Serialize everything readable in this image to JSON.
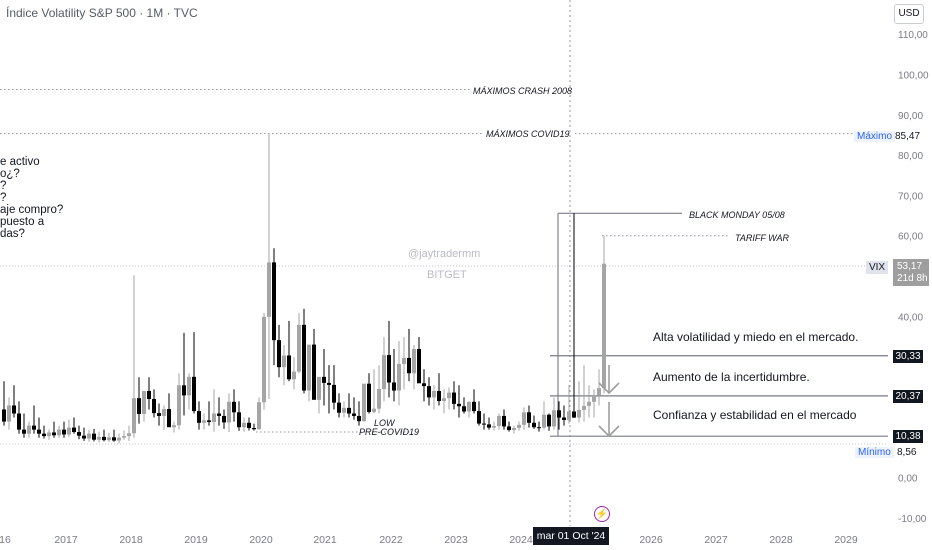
{
  "title": "Índice Volatility S&P 500 · 1M · TVC",
  "currency": "USD",
  "notes_fragments": [
    "e activo",
    "o¿?",
    "?",
    "?",
    "aje compro?",
    "puesto a",
    "das?"
  ],
  "annotations": {
    "crash_2008": "MÁXIMOS CRASH 2008",
    "covid19": "MÁXIMOS COVID19",
    "black_monday": "BLACK MONDAY 05/08",
    "tariff_war": "TARIFF WAR",
    "low": "LOW",
    "pre_covid": "PRE-COVID19"
  },
  "zones": {
    "high": "Alta volatilidad y miedo en el mercado.",
    "mid": "Aumento de la incertidumbre.",
    "low": "Confianza y estabilidad en el mercado"
  },
  "watermarks": {
    "author": "@jaytradermm",
    "broker": "BITGET"
  },
  "price_scale": {
    "maximo_label": "Máximo",
    "maximo_value": "85,47",
    "vix_label": "VIX",
    "vix_value": "53,17",
    "vix_countdown": "21d 8h",
    "minimo_label": "Mínimo",
    "minimo_value": "8,56",
    "level_1": "30,33",
    "level_2": "20,37",
    "level_3": "10,38"
  },
  "cursor_date": "mar 01 Oct '24",
  "colors": {
    "bull": "#a5a5a5",
    "bear": "#000000",
    "guide": "#9598a1",
    "zone_line": "#787b86"
  },
  "chart_data": {
    "type": "candlestick",
    "title": "Índice Volatility S&P 500 · 1M · TVC",
    "y_ticks": [
      "-10,00",
      "0,00",
      "10,00",
      "20,00",
      "30,00",
      "40,00",
      "50,00",
      "60,00",
      "70,00",
      "80,00",
      "90,00",
      "100,00",
      "110,00"
    ],
    "ylim": [
      -10,
      115
    ],
    "x_ticks": [
      "16",
      "2017",
      "2018",
      "2019",
      "2020",
      "2021",
      "2022",
      "2023",
      "2024",
      "2026",
      "2027",
      "2028",
      "2029"
    ],
    "horizontal_levels": [
      96.4,
      85.47,
      60.5,
      30.33,
      20.37,
      10.38
    ],
    "highlighted_candles": [
      {
        "period": "2020-03",
        "open": 40.1,
        "high": 85.47,
        "low": 19.6,
        "close": 53.5
      },
      {
        "period": "2024-08",
        "open": 16.4,
        "high": 65.7,
        "low": 14.9,
        "close": 15.0
      },
      {
        "period": "2025-04",
        "open": 22.3,
        "high": 60.1,
        "low": 21.0,
        "close": 53.17
      }
    ],
    "minimum": 8.56,
    "maximum": 85.47,
    "last": 53.17
  }
}
